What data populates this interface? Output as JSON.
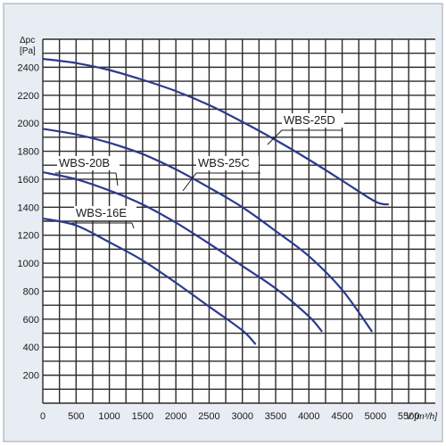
{
  "chart_data": {
    "type": "line",
    "ylabel_line1": "Δpc",
    "ylabel_line2": "[Pa]",
    "xlabel": "V [m³/h]",
    "xlim": [
      0,
      5900
    ],
    "ylim": [
      0,
      2600
    ],
    "x_ticks": [
      0,
      500,
      1000,
      1500,
      2000,
      2500,
      3000,
      3500,
      4000,
      4500,
      5000,
      5500
    ],
    "y_ticks": [
      200,
      400,
      600,
      800,
      1000,
      1200,
      1400,
      1600,
      1800,
      2000,
      2200,
      2400
    ],
    "grid": true,
    "series": [
      {
        "name": "WBS-16E",
        "x": [
          0,
          500,
          1000,
          1500,
          2000,
          2500,
          3000,
          3200
        ],
        "y": [
          1320,
          1270,
          1150,
          1020,
          860,
          690,
          520,
          420
        ]
      },
      {
        "name": "WBS-20B",
        "x": [
          0,
          500,
          1000,
          1500,
          2000,
          2500,
          3000,
          3500,
          4000,
          4200
        ],
        "y": [
          1650,
          1600,
          1520,
          1420,
          1290,
          1140,
          980,
          820,
          620,
          510
        ]
      },
      {
        "name": "WBS-25C",
        "x": [
          0,
          500,
          1000,
          1500,
          2000,
          2500,
          3000,
          3500,
          4000,
          4500,
          4950
        ],
        "y": [
          1960,
          1920,
          1860,
          1780,
          1670,
          1540,
          1400,
          1230,
          1050,
          810,
          510
        ]
      },
      {
        "name": "WBS-25D",
        "x": [
          0,
          500,
          1000,
          1500,
          2000,
          2500,
          3000,
          3500,
          4000,
          4500,
          5000,
          5200
        ],
        "y": [
          2460,
          2430,
          2380,
          2310,
          2230,
          2130,
          2010,
          1880,
          1740,
          1590,
          1440,
          1420
        ]
      }
    ]
  }
}
